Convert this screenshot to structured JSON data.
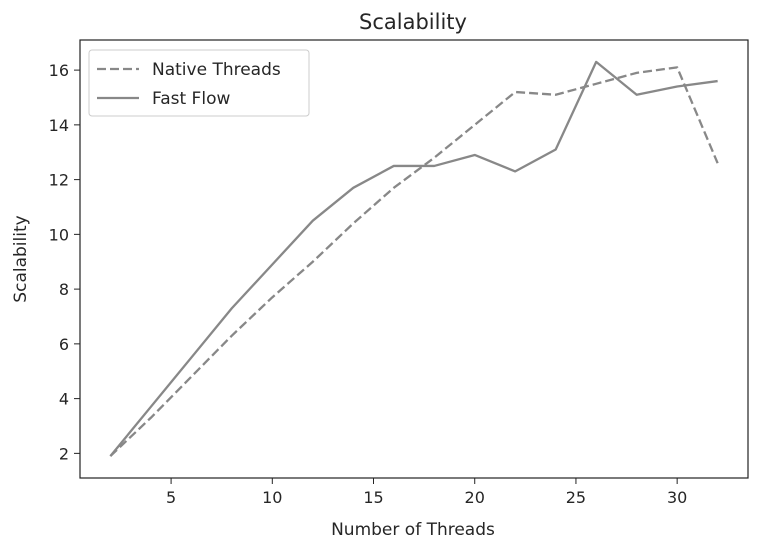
{
  "chart_data": {
    "type": "line",
    "title": "Scalability",
    "xlabel": "Number of Threads",
    "ylabel": "Scalability",
    "xlim": [
      0.5,
      33.5
    ],
    "ylim": [
      1.1,
      17.1
    ],
    "xticks": [
      5,
      10,
      15,
      20,
      25,
      30
    ],
    "yticks": [
      2,
      4,
      6,
      8,
      10,
      12,
      14,
      16
    ],
    "grid": false,
    "legend_position": "top-left",
    "line_color": "#888888",
    "series": [
      {
        "name": "Native Threads",
        "style": "dashed",
        "x": [
          2,
          4,
          6,
          8,
          10,
          12,
          14,
          16,
          18,
          20,
          22,
          24,
          26,
          28,
          30,
          32
        ],
        "y": [
          1.9,
          3.3,
          4.8,
          6.3,
          7.7,
          9.0,
          10.4,
          11.7,
          12.8,
          14.0,
          15.2,
          15.1,
          15.5,
          15.9,
          16.1,
          12.6
        ]
      },
      {
        "name": "Fast Flow",
        "style": "solid",
        "x": [
          2,
          4,
          6,
          8,
          10,
          12,
          14,
          16,
          18,
          20,
          22,
          24,
          26,
          28,
          30,
          32
        ],
        "y": [
          1.9,
          3.7,
          5.5,
          7.3,
          8.9,
          10.5,
          11.7,
          12.5,
          12.5,
          12.9,
          12.3,
          13.1,
          16.3,
          15.1,
          15.4,
          15.6
        ]
      }
    ]
  }
}
